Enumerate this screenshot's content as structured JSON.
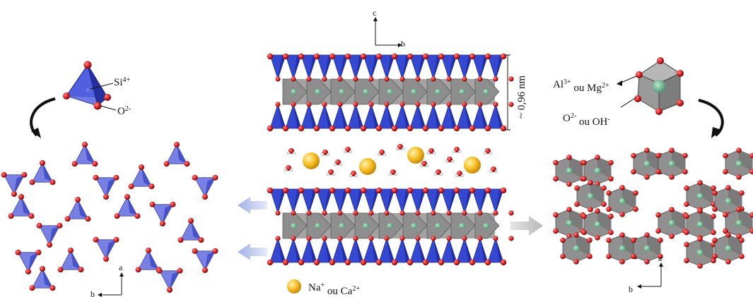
{
  "labels": {
    "si_base": "Si",
    "si_sup": "4+",
    "o_base": "O",
    "o_sup": "2-",
    "al_base": "Al",
    "al_sup": "3+",
    "al_mid": " ou Mg",
    "mg_sup": "2+",
    "o2_base": "O",
    "o2_sup": "2-",
    "o2_mid": " ou OH",
    "oh_sup": "-",
    "legend_base": "Na",
    "legend_sup1": "+",
    "legend_mid": " ou Ca",
    "legend_sup2": "2+",
    "spacing": "~ 0,96 nm"
  },
  "axes": {
    "center": {
      "up": "c",
      "right": "b"
    },
    "left": {
      "up": "a",
      "right": "b"
    },
    "right": {
      "up": "a",
      "right": "b"
    }
  },
  "colors": {
    "tetrahedra": "#2b3fcf",
    "octahedra": "#8f8f8f",
    "oxygen": "#d42020",
    "cation": "#f2b81e",
    "octa_center": "#5fb88a",
    "arrow_blue": "#b9c4ee",
    "arrow_grey": "#c8c8c8"
  }
}
